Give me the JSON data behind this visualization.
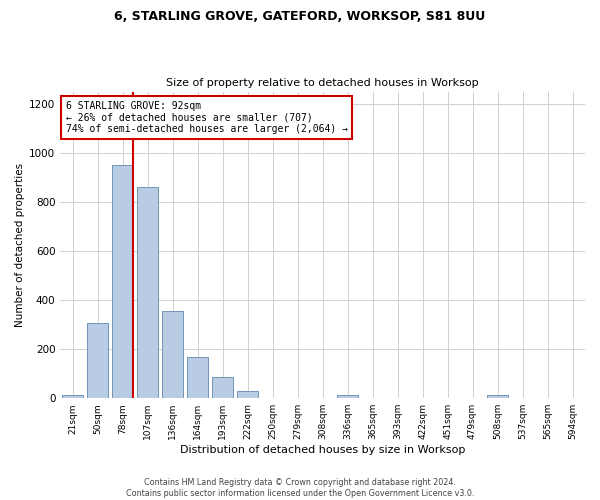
{
  "title": "6, STARLING GROVE, GATEFORD, WORKSOP, S81 8UU",
  "subtitle": "Size of property relative to detached houses in Worksop",
  "xlabel": "Distribution of detached houses by size in Worksop",
  "ylabel": "Number of detached properties",
  "bin_labels": [
    "21sqm",
    "50sqm",
    "78sqm",
    "107sqm",
    "136sqm",
    "164sqm",
    "193sqm",
    "222sqm",
    "250sqm",
    "279sqm",
    "308sqm",
    "336sqm",
    "365sqm",
    "393sqm",
    "422sqm",
    "451sqm",
    "479sqm",
    "508sqm",
    "537sqm",
    "565sqm",
    "594sqm"
  ],
  "bar_values": [
    13,
    305,
    950,
    860,
    355,
    170,
    85,
    28,
    0,
    0,
    0,
    13,
    0,
    0,
    0,
    0,
    0,
    13,
    0,
    0,
    0
  ],
  "bar_color": "#b8cce4",
  "bar_edge_color": "#7094b8",
  "ylim": [
    0,
    1250
  ],
  "yticks": [
    0,
    200,
    400,
    600,
    800,
    1000,
    1200
  ],
  "property_bin_index": 2,
  "red_line_color": "#cc0000",
  "annotation_line1": "6 STARLING GROVE: 92sqm",
  "annotation_line2": "← 26% of detached houses are smaller (707)",
  "annotation_line3": "74% of semi-detached houses are larger (2,064) →",
  "annotation_box_color": "#ffffff",
  "annotation_box_edge": "#cc0000",
  "footer_text": "Contains HM Land Registry data © Crown copyright and database right 2024.\nContains public sector information licensed under the Open Government Licence v3.0.",
  "background_color": "#ffffff",
  "grid_color": "#d0d0d0"
}
